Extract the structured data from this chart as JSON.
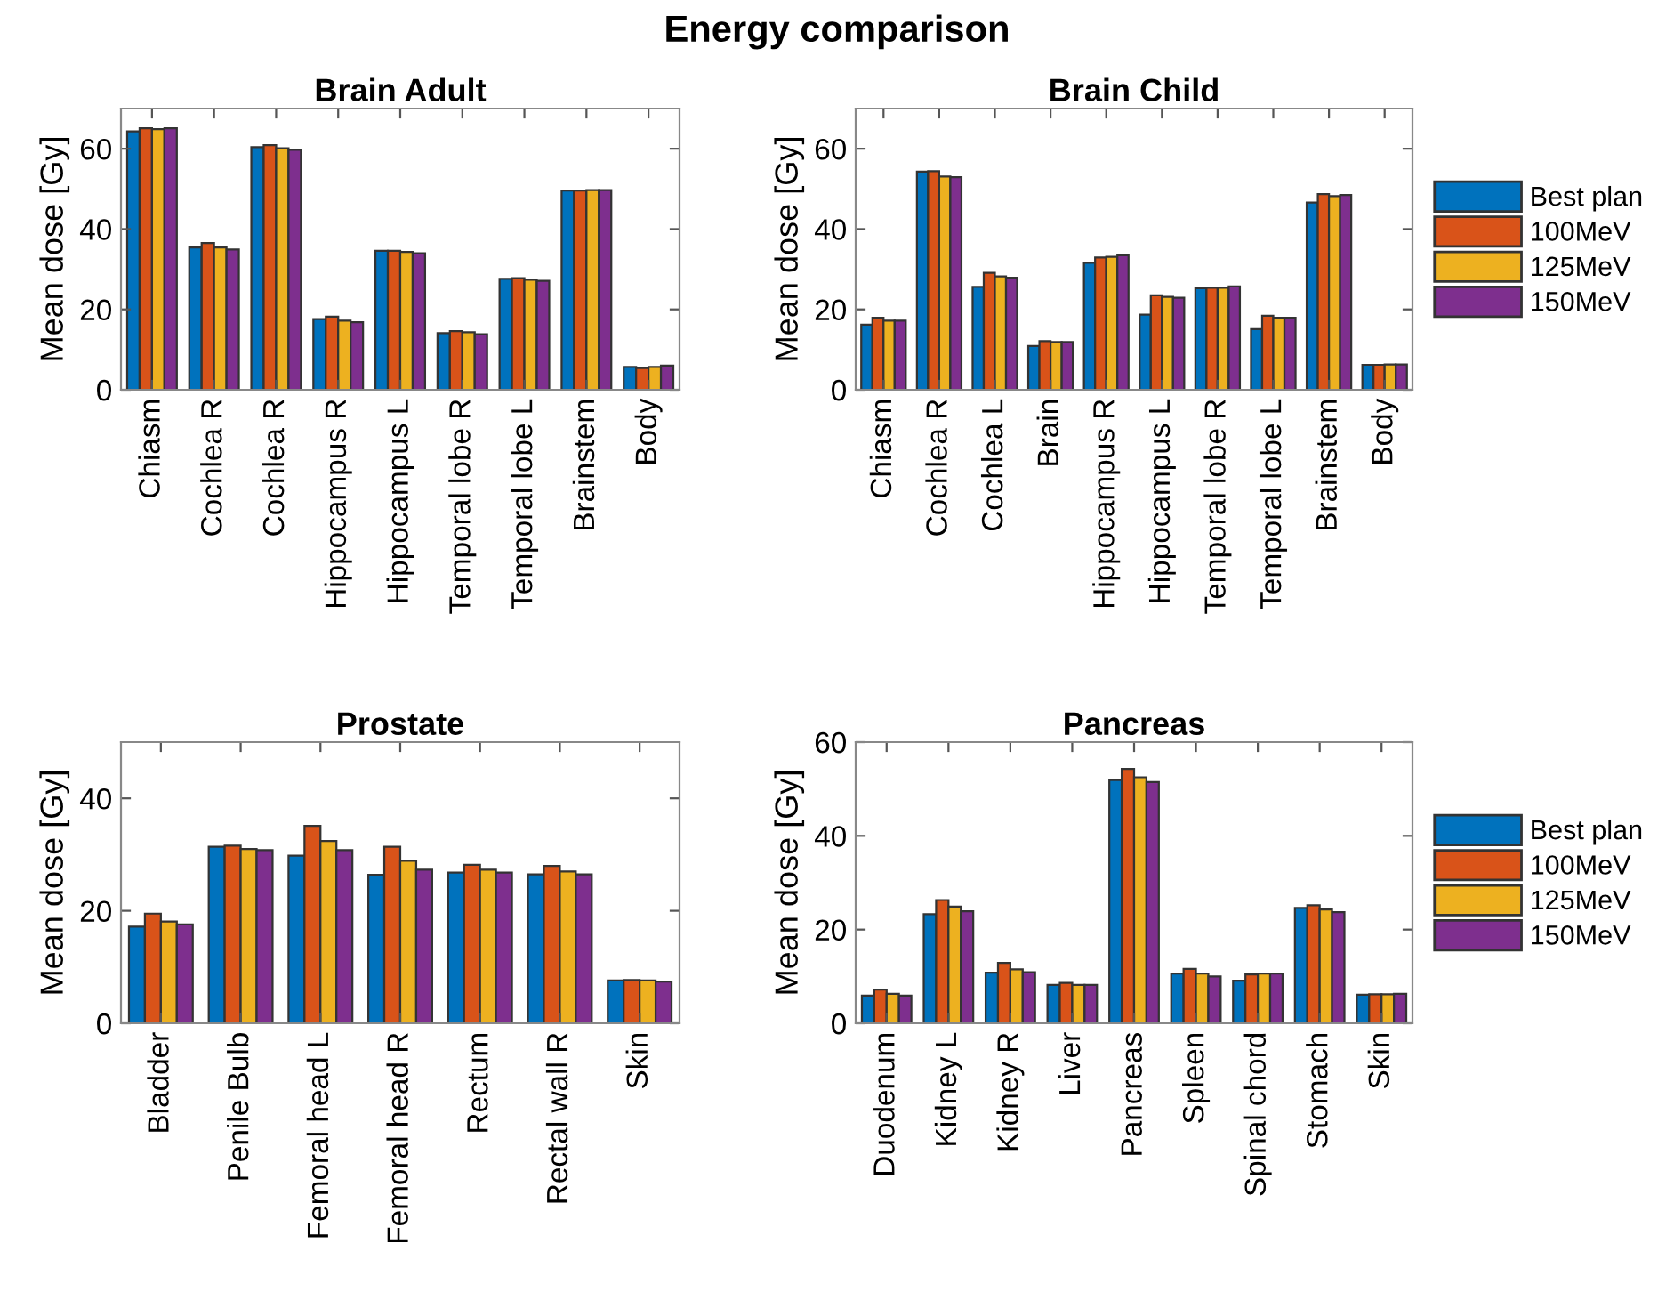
{
  "chart_data": [
    {
      "type": "bar",
      "title": "Brain Adult",
      "ylabel": "Mean dose [Gy]",
      "annotations": [
        "Energy comparison"
      ],
      "categories": [
        "Chiasm",
        "Cochlea R",
        "Cochlea R",
        "Hippocampus R",
        "Hippocampus L",
        "Temporal lobe R",
        "Temporal lobe L",
        "Brainstem",
        "Body"
      ],
      "ylim": [
        0,
        70
      ],
      "yticks": [
        0,
        20,
        40,
        60
      ],
      "grid": false,
      "legend": false,
      "series": [
        {
          "color": "#0072bd",
          "values": [
            64.3,
            35.4,
            60.4,
            17.6,
            34.6,
            14.1,
            27.6,
            49.6,
            5.7
          ]
        },
        {
          "color": "#d95319",
          "values": [
            65.1,
            36.5,
            60.9,
            18.2,
            34.6,
            14.6,
            27.8,
            49.6,
            5.4
          ]
        },
        {
          "color": "#edb120",
          "values": [
            64.9,
            35.4,
            60.1,
            17.2,
            34.3,
            14.3,
            27.4,
            49.7,
            5.7
          ]
        },
        {
          "color": "#7e2f8e",
          "values": [
            65.1,
            34.9,
            59.7,
            16.8,
            34.0,
            13.8,
            27.1,
            49.7,
            6.0
          ]
        }
      ]
    },
    {
      "type": "bar",
      "title": "Brain Child",
      "ylabel": "Mean dose [Gy]",
      "categories": [
        "Chiasm",
        "Cochlea R",
        "Cochlea L",
        "Brain",
        "Hippocampus R",
        "Hippocampus L",
        "Temporal lobe R",
        "Temporal lobe L",
        "Brainstem",
        "Body"
      ],
      "ylim": [
        0,
        70
      ],
      "yticks": [
        0,
        20,
        40,
        60
      ],
      "grid": false,
      "legend": "right",
      "series": [
        {
          "name": "Best plan",
          "color": "#0072bd",
          "values": [
            16.2,
            54.3,
            25.6,
            10.9,
            31.6,
            18.7,
            25.3,
            15.1,
            46.6,
            6.2
          ]
        },
        {
          "name": "100MeV",
          "color": "#d95319",
          "values": [
            17.9,
            54.4,
            29.1,
            12.1,
            32.9,
            23.5,
            25.4,
            18.4,
            48.7,
            6.2
          ]
        },
        {
          "name": "125MeV",
          "color": "#edb120",
          "values": [
            17.2,
            53.1,
            28.2,
            11.9,
            33.1,
            23.1,
            25.4,
            17.9,
            48.2,
            6.3
          ]
        },
        {
          "name": "150MeV",
          "color": "#7e2f8e",
          "values": [
            17.2,
            52.9,
            27.9,
            11.9,
            33.5,
            22.9,
            25.7,
            17.9,
            48.5,
            6.3
          ]
        }
      ]
    },
    {
      "type": "bar",
      "title": "Prostate",
      "ylabel": "Mean dose [Gy]",
      "categories": [
        "Bladder",
        "Penile Bulb",
        "Femoral head L",
        "Femoral head R",
        "Rectum",
        "Rectal wall R",
        "Skin"
      ],
      "ylim": [
        0,
        50
      ],
      "yticks": [
        0,
        20,
        40
      ],
      "grid": false,
      "legend": false,
      "series": [
        {
          "color": "#0072bd",
          "values": [
            17.2,
            31.4,
            29.8,
            26.4,
            26.8,
            26.5,
            7.6
          ]
        },
        {
          "color": "#d95319",
          "values": [
            19.5,
            31.6,
            35.1,
            31.4,
            28.2,
            28.0,
            7.7
          ]
        },
        {
          "color": "#edb120",
          "values": [
            18.1,
            31.0,
            32.4,
            28.9,
            27.3,
            27.0,
            7.6
          ]
        },
        {
          "color": "#7e2f8e",
          "values": [
            17.6,
            30.8,
            30.8,
            27.3,
            26.8,
            26.5,
            7.4
          ]
        }
      ]
    },
    {
      "type": "bar",
      "title": "Pancreas",
      "ylabel": "Mean dose [Gy]",
      "categories": [
        "Duodenum",
        "Kidney L",
        "Kidney R",
        "Liver",
        "Pancreas",
        "Spleen",
        "Spinal chord",
        "Stomach",
        "Skin"
      ],
      "ylim": [
        0,
        60
      ],
      "yticks": [
        0,
        20,
        40,
        60
      ],
      "grid": false,
      "legend": "right",
      "series": [
        {
          "name": "Best plan",
          "color": "#0072bd",
          "values": [
            5.9,
            23.3,
            10.8,
            8.2,
            51.9,
            10.6,
            9.1,
            24.6,
            6.1
          ]
        },
        {
          "name": "100MeV",
          "color": "#d95319",
          "values": [
            7.2,
            26.3,
            12.9,
            8.6,
            54.3,
            11.6,
            10.4,
            25.2,
            6.2
          ]
        },
        {
          "name": "125MeV",
          "color": "#edb120",
          "values": [
            6.3,
            24.9,
            11.5,
            8.2,
            52.5,
            10.6,
            10.6,
            24.3,
            6.2
          ]
        },
        {
          "name": "150MeV",
          "color": "#7e2f8e",
          "values": [
            5.9,
            23.9,
            10.9,
            8.2,
            51.5,
            10.0,
            10.6,
            23.7,
            6.3
          ]
        }
      ]
    }
  ]
}
